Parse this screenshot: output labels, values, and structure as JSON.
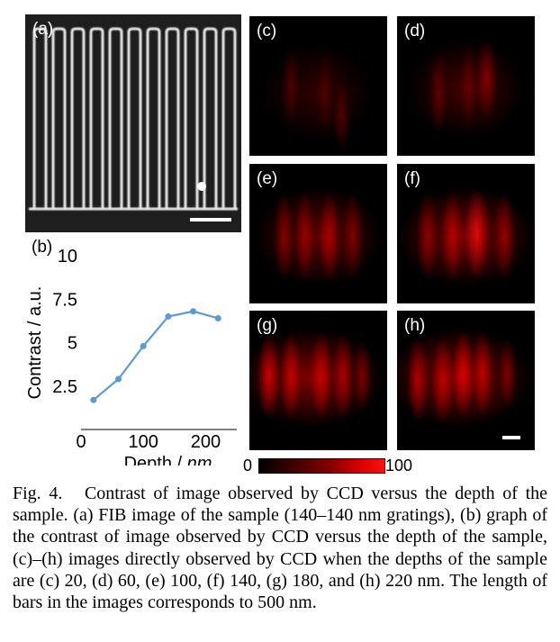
{
  "panels": {
    "a": {
      "label": "(a)"
    },
    "b": {
      "label": "(b)"
    },
    "c": {
      "label": "(c)"
    },
    "d": {
      "label": "(d)"
    },
    "e": {
      "label": "(e)"
    },
    "f": {
      "label": "(f)"
    },
    "g": {
      "label": "(g)"
    },
    "h": {
      "label": "(h)"
    }
  },
  "colorbar": {
    "min": "0",
    "max": "100"
  },
  "chart_data": {
    "type": "line",
    "title": "",
    "xlabel": "Depth / ",
    "xlabel_unit": "nm",
    "ylabel": "Contrast / a.u.",
    "x": [
      20,
      60,
      100,
      140,
      180,
      220
    ],
    "y": [
      1.7,
      2.9,
      4.8,
      6.5,
      6.8,
      6.4
    ],
    "xlim": [
      0,
      250
    ],
    "ylim": [
      0,
      10
    ],
    "xticks": [
      "0",
      "100",
      "200"
    ],
    "yticks": [
      "2.5",
      "5",
      "7.5",
      "10"
    ],
    "series_color": "#5b9bd5"
  },
  "caption": {
    "fig_label": "Fig. 4.",
    "text": "Contrast of image observed by CCD versus the depth of the sample. (a) FIB image of the sample (140–140 nm gratings), (b) graph of the contrast of image observed by CCD versus the depth of the sample, (c)–(h) images directly observed by CCD when the depths of the sample are (c) 20, (d) 60, (e) 100, (f) 140, (g) 180, and (h) 220 nm. The length of bars in the images corresponds to 500 nm."
  }
}
